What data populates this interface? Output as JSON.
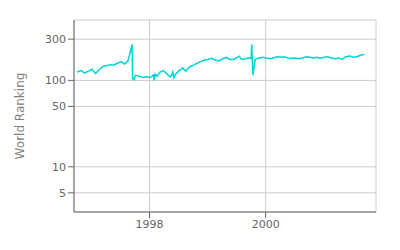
{
  "chart_data": {
    "type": "line",
    "ylabel": "World Ranking",
    "color": "#00d4d4",
    "log": "y",
    "grid": true,
    "xlim": [
      1996.7,
      2001.9
    ],
    "xticks": [
      1998,
      2000
    ],
    "ylim": [
      3,
      500
    ],
    "yticks": [
      5,
      10,
      50,
      100,
      300
    ],
    "x": [
      1996.75,
      1996.82,
      1996.88,
      1996.95,
      1997.01,
      1997.07,
      1997.13,
      1997.2,
      1997.26,
      1997.32,
      1997.38,
      1997.45,
      1997.51,
      1997.57,
      1997.63,
      1997.7,
      1997.71,
      1997.73,
      1997.76,
      1997.82,
      1997.88,
      1997.95,
      1998.01,
      1998.07,
      1998.08,
      1998.1,
      1998.13,
      1998.18,
      1998.24,
      1998.3,
      1998.36,
      1998.38,
      1998.4,
      1998.42,
      1998.45,
      1998.5,
      1998.55,
      1998.57,
      1998.6,
      1998.63,
      1998.65,
      1998.7,
      1998.76,
      1998.82,
      1998.88,
      1998.95,
      1999.01,
      1999.07,
      1999.13,
      1999.2,
      1999.26,
      1999.32,
      1999.38,
      1999.45,
      1999.51,
      1999.55,
      1999.57,
      1999.6,
      1999.65,
      1999.7,
      1999.75,
      1999.76,
      1999.78,
      1999.82,
      1999.88,
      1999.95,
      2000.01,
      2000.07,
      2000.13,
      2000.2,
      2000.26,
      2000.32,
      2000.38,
      2000.45,
      2000.51,
      2000.57,
      2000.63,
      2000.7,
      2000.76,
      2000.82,
      2000.88,
      2000.95,
      2001.01,
      2001.07,
      2001.13,
      2001.2,
      2001.26,
      2001.32,
      2001.38,
      2001.45,
      2001.51,
      2001.57,
      2001.63,
      2001.7
    ],
    "values": [
      125,
      130,
      122,
      128,
      135,
      120,
      132,
      145,
      148,
      152,
      150,
      158,
      165,
      155,
      168,
      260,
      105,
      102,
      115,
      112,
      108,
      110,
      108,
      115,
      100,
      118,
      112,
      125,
      130,
      118,
      110,
      115,
      125,
      108,
      118,
      128,
      135,
      140,
      132,
      128,
      135,
      145,
      150,
      158,
      165,
      172,
      175,
      180,
      172,
      168,
      178,
      185,
      175,
      175,
      185,
      190,
      178,
      175,
      178,
      182,
      180,
      260,
      115,
      175,
      182,
      185,
      182,
      178,
      182,
      188,
      185,
      188,
      182,
      180,
      182,
      178,
      182,
      188,
      185,
      182,
      185,
      180,
      185,
      188,
      182,
      178,
      182,
      175,
      188,
      192,
      185,
      188,
      195,
      200
    ]
  }
}
